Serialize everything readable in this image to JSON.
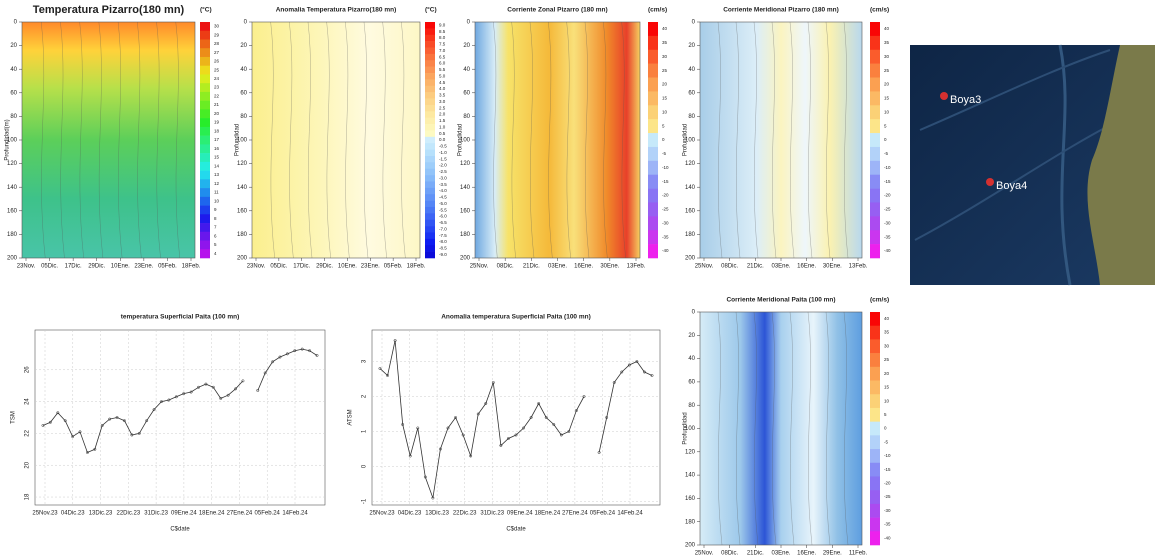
{
  "chart_data": [
    {
      "type": "contour",
      "title": "Temperatura Pizarro(180 mn)",
      "unit": "(°C)",
      "ylabel": "Profundidad(m)",
      "ylim": [
        200,
        0
      ],
      "yticks": [
        0,
        20,
        40,
        60,
        80,
        100,
        120,
        140,
        160,
        180,
        200
      ],
      "xticks": [
        "23Nov.",
        "05Dic.",
        "17Dic.",
        "29Dic.",
        "10Ene.",
        "23Ene.",
        "05Feb.",
        "18Feb."
      ],
      "cbar": [
        "30",
        "29",
        "28",
        "27",
        "26",
        "25",
        "24",
        "23",
        "22",
        "21",
        "20",
        "19",
        "18",
        "17",
        "16",
        "15",
        "14",
        "13",
        "12",
        "11",
        "10",
        "9",
        "8",
        "7",
        "6",
        "5",
        "4"
      ]
    },
    {
      "type": "contour",
      "title": "Anomalia Temperatura Pizarro(180 mn)",
      "unit": "(°C)",
      "ylabel": "Profundidad",
      "ylim": [
        200,
        0
      ],
      "yticks": [
        0,
        20,
        40,
        60,
        80,
        100,
        120,
        140,
        160,
        180,
        200
      ],
      "xticks": [
        "23Nov.",
        "05Dic.",
        "17Dic.",
        "29Dic.",
        "10Ene.",
        "23Ene.",
        "05Feb.",
        "18Feb."
      ],
      "cbar": [
        "9.0",
        "8.5",
        "8.0",
        "7.5",
        "7.0",
        "6.5",
        "6.0",
        "5.5",
        "5.0",
        "4.5",
        "4.0",
        "3.5",
        "3.0",
        "2.5",
        "2.0",
        "1.5",
        "1.0",
        "0.5",
        "0.0",
        "-0.5",
        "-1.0",
        "-1.5",
        "-2.0",
        "-2.5",
        "-3.0",
        "-3.5",
        "-4.0",
        "-4.5",
        "-5.0",
        "-5.5",
        "-6.0",
        "-6.5",
        "-7.0",
        "-7.5",
        "-8.0",
        "-8.5",
        "-9.0"
      ]
    },
    {
      "type": "contour",
      "title": "Corriente Zonal Pizarro (180 mn)",
      "unit": "(cm/s)",
      "ylabel": "Profundidad",
      "ylim": [
        200,
        0
      ],
      "yticks": [
        0,
        20,
        40,
        60,
        80,
        100,
        120,
        140,
        160,
        180,
        200
      ],
      "xticks": [
        "25Nov.",
        "08Dic.",
        "21Dic.",
        "03Ene.",
        "16Ene.",
        "30Ene.",
        "13Feb."
      ],
      "cbar": [
        "40",
        "35",
        "30",
        "25",
        "20",
        "15",
        "10",
        "5",
        "0",
        "-5",
        "-10",
        "-15",
        "-20",
        "-25",
        "-30",
        "-35",
        "-40"
      ]
    },
    {
      "type": "contour",
      "title": "Corriente Meridional Pizarro (180 mn)",
      "unit": "(cm/s)",
      "ylabel": "Profundidad",
      "ylim": [
        200,
        0
      ],
      "yticks": [
        0,
        20,
        40,
        60,
        80,
        100,
        120,
        140,
        160,
        180,
        200
      ],
      "xticks": [
        "25Nov.",
        "08Dic.",
        "21Dic.",
        "03Ene.",
        "16Ene.",
        "30Ene.",
        "13Feb."
      ],
      "cbar": [
        "40",
        "35",
        "30",
        "25",
        "20",
        "15",
        "10",
        "5",
        "0",
        "-5",
        "-10",
        "-15",
        "-20",
        "-25",
        "-30",
        "-35",
        "-40"
      ]
    },
    {
      "type": "line",
      "title": "temperatura Superficial Paita (100 mn)",
      "ylabel": "TSM",
      "xlabel": "C$date",
      "ylim": [
        17.5,
        28.5
      ],
      "yticks": [
        18,
        20,
        22,
        24,
        26
      ],
      "xticks": [
        "25Nov.23",
        "04Dic.23",
        "13Dic.23",
        "22Dic.23",
        "31Dic.23",
        "09Ene.24",
        "18Ene.24",
        "27Ene.24",
        "05Feb.24",
        "14Feb.24"
      ],
      "series": [
        {
          "color": "#333333",
          "values": [
            22.5,
            22.7,
            23.3,
            22.8,
            21.8,
            22.1,
            20.8,
            21.0,
            22.5,
            22.9,
            23.0,
            22.8,
            21.9,
            22.0,
            22.8,
            23.5,
            24.0,
            24.1,
            24.3,
            24.5,
            24.6,
            24.9,
            25.1,
            24.9,
            24.2,
            24.4,
            24.8,
            25.3,
            null,
            24.7,
            25.8,
            26.5,
            26.8,
            27.0,
            27.2,
            27.3,
            27.2,
            26.9
          ]
        }
      ]
    },
    {
      "type": "line",
      "title": "Anomalia temperatura Superficial Paita (100 mn)",
      "ylabel": "ATSM",
      "xlabel": "C$date",
      "ylim": [
        -1.1,
        3.9
      ],
      "yticks": [
        -1,
        0,
        1,
        2,
        3
      ],
      "xticks": [
        "25Nov.23",
        "04Dic.23",
        "13Dic.23",
        "22Dic.23",
        "31Dic.23",
        "09Ene.24",
        "18Ene.24",
        "27Ene.24",
        "05Feb.24",
        "14Feb.24"
      ],
      "series": [
        {
          "color": "#333333",
          "values": [
            2.8,
            2.6,
            3.6,
            1.2,
            0.3,
            1.1,
            -0.3,
            -0.9,
            0.5,
            1.1,
            1.4,
            0.9,
            0.3,
            1.5,
            1.8,
            2.4,
            0.6,
            0.8,
            0.9,
            1.1,
            1.4,
            1.8,
            1.4,
            1.2,
            0.9,
            1.0,
            1.6,
            2.0,
            null,
            0.4,
            1.4,
            2.4,
            2.7,
            2.9,
            3.0,
            2.7,
            2.6
          ]
        }
      ]
    },
    {
      "type": "contour",
      "title": "Corriente Meridional Paita (100 mn)",
      "unit": "(cm/s)",
      "ylabel": "Profundidad",
      "ylim": [
        200,
        0
      ],
      "yticks": [
        0,
        20,
        40,
        60,
        80,
        100,
        120,
        140,
        160,
        180,
        200
      ],
      "xticks": [
        "25Nov.",
        "08Dic.",
        "21Dic.",
        "03Ene.",
        "16Ene.",
        "29Ene.",
        "11Feb."
      ],
      "cbar": [
        "40",
        "35",
        "30",
        "25",
        "20",
        "15",
        "10",
        "5",
        "0",
        "-5",
        "-10",
        "-15",
        "-20",
        "-25",
        "-30",
        "-35",
        "-40"
      ]
    }
  ],
  "map": {
    "labels": [
      "Boya3",
      "Boya4"
    ]
  }
}
